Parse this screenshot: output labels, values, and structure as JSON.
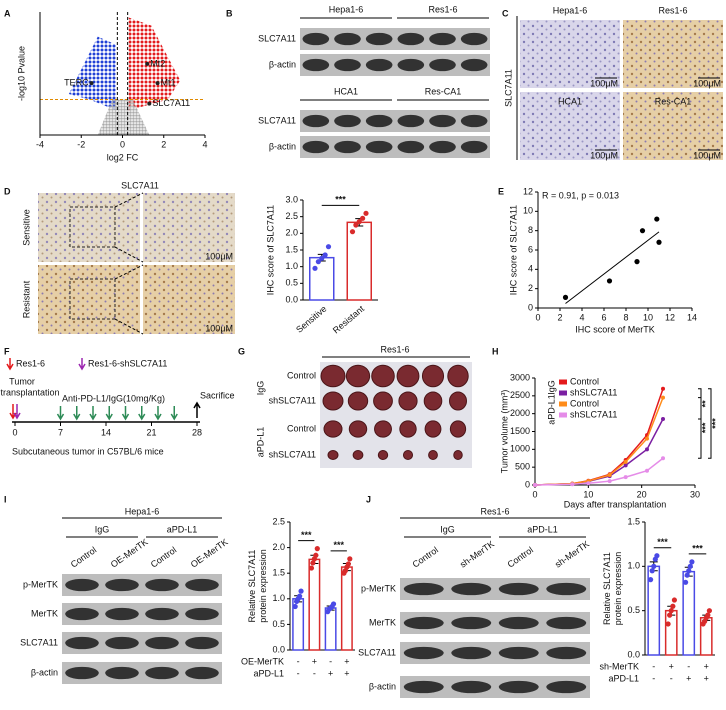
{
  "panel_labels": [
    "A",
    "B",
    "C",
    "D",
    "E",
    "F",
    "G",
    "H",
    "I",
    "J"
  ],
  "blot_b": {
    "groups": [
      {
        "lines": [
          "Hepa1-6",
          "Res1-6"
        ],
        "rows": [
          "SLC7A11",
          "β-actin"
        ]
      },
      {
        "lines": [
          "HCA1",
          "Res-CA1"
        ],
        "rows": [
          "SLC7A11",
          "β-actin"
        ]
      }
    ]
  },
  "ihc_c": {
    "marker": "SLC7A11",
    "cells": [
      "Hepa1-6",
      "Res1-6",
      "HCA1",
      "Res-CA1"
    ],
    "scale": "100μM"
  },
  "ihc_d": {
    "title": "SLC7A11",
    "rows": [
      "Sensitive",
      "Resistant"
    ],
    "scale": "100μM"
  },
  "schema_f": {
    "legend": [
      "Res1-6",
      "Res1-6-shSLC7A11"
    ],
    "transplant": [
      "Tumor",
      "transplantation"
    ],
    "treatment": "Anti-PD-L1/IgG(10mg/Kg)",
    "end": "Sacrifice",
    "days": [
      0,
      7,
      14,
      21,
      28
    ],
    "footer": "Subcutaneous tumor in C57BL/6 mice"
  },
  "photo_g": {
    "title": "Res1-6",
    "groups": [
      "IgG",
      "aPD-L1"
    ],
    "rows": [
      "Control",
      "shSLC7A11",
      "Control",
      "shSLC7A11"
    ]
  },
  "blot_i": {
    "title": "Hepa1-6",
    "groups": [
      "IgG",
      "aPD-L1"
    ],
    "lanes": [
      "Control",
      "OE-MerTK",
      "Control",
      "OE-MerTK"
    ],
    "rows": [
      "p-MerTK",
      "MerTK",
      "SLC7A11",
      "β-actin"
    ]
  },
  "blot_j": {
    "title": "Res1-6",
    "groups": [
      "IgG",
      "aPD-L1"
    ],
    "lanes": [
      "Control",
      "sh-MerTK",
      "Control",
      "sh-MerTK"
    ],
    "rows": [
      "p-MerTK",
      "MerTK",
      "SLC7A11",
      "β-actin"
    ]
  },
  "chart_data": [
    {
      "type": "volcano",
      "xlabel": "log2 FC",
      "ylabel": "-log10 Pvalue",
      "xlim": [
        -4,
        4
      ],
      "xticks": [
        -4,
        -2,
        0,
        2,
        4
      ],
      "ylim": [
        0,
        4.5
      ],
      "p_threshold": 1.3,
      "fc_threshold": [
        -0.25,
        0.25
      ],
      "labels": [
        "TERC",
        "Mt2",
        "Mt1",
        "SLC7A11"
      ],
      "x": [
        -1.5,
        1.2,
        1.7,
        1.3
      ],
      "y": [
        1.9,
        2.6,
        1.9,
        1.15
      ],
      "label_colors": [
        "#333333",
        "#333333",
        "#333333",
        "#e08a00"
      ],
      "colors": {
        "down": "#1f3fd6",
        "up": "#e31a1c",
        "ns": "#aaaaaa"
      }
    },
    {
      "type": "dotbar",
      "ylabel": [
        "IHC score of  SLC7A11"
      ],
      "categories": [
        "Sensitive",
        "Resistant"
      ],
      "values": [
        1.27,
        2.33
      ],
      "errors": [
        0.1,
        0.11
      ],
      "points": [
        [
          0.95,
          1.15,
          1.25,
          1.35,
          1.6
        ],
        [
          2.05,
          2.25,
          2.35,
          2.45,
          2.6
        ]
      ],
      "colors": [
        "#4a4ae6",
        "#d92b2b"
      ],
      "ylim": [
        0,
        3
      ],
      "yticks": [
        {
          "value": 0,
          "label": "0.0"
        },
        {
          "value": 0.5,
          "label": "0.5"
        },
        {
          "value": 1,
          "label": "1.0"
        },
        {
          "value": 1.5,
          "label": "1.5"
        },
        {
          "value": 2,
          "label": "2.0"
        },
        {
          "value": 2.5,
          "label": "2.5"
        },
        {
          "value": 3,
          "label": "3.0"
        }
      ],
      "annotations": [
        "***"
      ]
    },
    {
      "type": "scatter",
      "annotation": "R = 0.91, p = 0.013",
      "xlabel": "IHC score of MerTK",
      "ylabel": "IHC score of SLC7A11",
      "x": [
        2.5,
        6.5,
        9,
        9.5,
        10.8,
        11
      ],
      "y": [
        1.1,
        2.8,
        4.8,
        8,
        9.2,
        6.8
      ],
      "xlim": [
        0,
        14
      ],
      "xticks": [
        0,
        2,
        4,
        6,
        8,
        10,
        12,
        14
      ],
      "ylim": [
        0,
        12
      ],
      "yticks": [
        0,
        2,
        4,
        6,
        8,
        10,
        12
      ],
      "color": "#000000"
    },
    {
      "type": "line",
      "xlabel": "Days after transplantation",
      "ylabel": "Tumor volume (mm³)",
      "x": [
        0,
        7,
        10,
        14,
        17,
        21,
        24
      ],
      "xlim": [
        0,
        30
      ],
      "xticks": [
        0,
        10,
        20,
        30
      ],
      "ylim": [
        0,
        3000
      ],
      "yticks": [
        0,
        500,
        1000,
        1500,
        2000,
        2500,
        3000
      ],
      "legend_groups": [
        "IgG",
        "aPD-L1"
      ],
      "series": [
        {
          "name": "Control",
          "color": "#e41a1c",
          "values": [
            0,
            40,
            120,
            300,
            700,
            1400,
            2700
          ]
        },
        {
          "name": "shSLC7A11",
          "color": "#7b1fa2",
          "values": [
            0,
            35,
            100,
            250,
            550,
            1000,
            1850
          ]
        },
        {
          "name": "Control",
          "color": "#ff8c1a",
          "values": [
            0,
            40,
            110,
            280,
            650,
            1300,
            2450
          ]
        },
        {
          "name": "shSLC7A11",
          "color": "#e58ce8",
          "values": [
            0,
            20,
            50,
            110,
            220,
            400,
            750
          ]
        }
      ],
      "annotations": [
        "**",
        "***",
        "***"
      ]
    },
    {
      "type": "dotbar",
      "ylabel": [
        "Relative SLC7A11",
        "protein expression"
      ],
      "values": [
        1.0,
        1.77,
        0.82,
        1.62
      ],
      "errors": [
        0.06,
        0.08,
        0.04,
        0.07
      ],
      "points": [
        [
          0.85,
          0.95,
          1.0,
          1.05,
          1.15
        ],
        [
          1.6,
          1.7,
          1.78,
          1.85,
          1.98
        ],
        [
          0.75,
          0.8,
          0.82,
          0.85,
          0.9
        ],
        [
          1.5,
          1.55,
          1.62,
          1.68,
          1.78
        ]
      ],
      "colors": [
        "#4a4ae6",
        "#d92b2b"
      ],
      "ylim": [
        0,
        2.5
      ],
      "yticks": [
        {
          "value": 0,
          "label": "0.0"
        },
        {
          "value": 0.5,
          "label": "0.5"
        },
        {
          "value": 1,
          "label": "1.0"
        },
        {
          "value": 1.5,
          "label": "1.5"
        },
        {
          "value": 2,
          "label": "2.0"
        },
        {
          "value": 2.5,
          "label": "2.5"
        }
      ],
      "conditions": [
        {
          "name": "OE-MerTK",
          "signs": [
            "-",
            "+",
            "-",
            "+"
          ]
        },
        {
          "name": "aPD-L1",
          "signs": [
            "-",
            "-",
            "+",
            "+"
          ]
        }
      ],
      "annotations": [
        "***",
        "***"
      ]
    },
    {
      "type": "dotbar",
      "ylabel": [
        "Relative SLC7A11",
        "protein expression"
      ],
      "values": [
        1.0,
        0.5,
        0.94,
        0.42
      ],
      "errors": [
        0.05,
        0.05,
        0.05,
        0.03
      ],
      "points": [
        [
          0.85,
          0.95,
          1.0,
          1.08,
          1.12
        ],
        [
          0.35,
          0.45,
          0.5,
          0.55,
          0.62
        ],
        [
          0.82,
          0.9,
          0.95,
          1.0,
          1.05
        ],
        [
          0.35,
          0.38,
          0.42,
          0.45,
          0.5
        ]
      ],
      "colors": [
        "#4a4ae6",
        "#d92b2b"
      ],
      "ylim": [
        0,
        1.5
      ],
      "yticks": [
        {
          "value": 0,
          "label": "0.0"
        },
        {
          "value": 0.5,
          "label": "0.5"
        },
        {
          "value": 1,
          "label": "1.0"
        },
        {
          "value": 1.5,
          "label": "1.5"
        }
      ],
      "conditions": [
        {
          "name": "sh-MerTK",
          "signs": [
            "-",
            "+",
            "-",
            "+"
          ]
        },
        {
          "name": "aPD-L1",
          "signs": [
            "-",
            "-",
            "+",
            "+"
          ]
        }
      ],
      "annotations": [
        "***",
        "***"
      ]
    }
  ]
}
